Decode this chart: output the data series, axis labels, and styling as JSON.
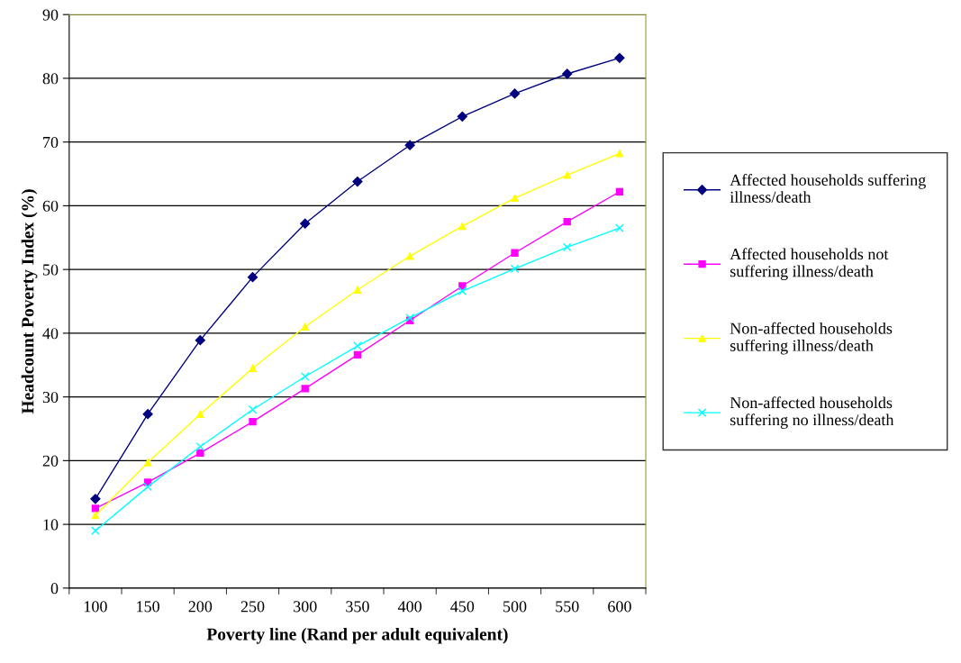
{
  "chart_data": {
    "type": "line",
    "xlabel": "Poverty line (Rand per adult equivalent)",
    "ylabel": "Headcount Poverty Index (%)",
    "categories": [
      "100",
      "150",
      "200",
      "250",
      "300",
      "350",
      "400",
      "450",
      "500",
      "550",
      "600"
    ],
    "ylim": [
      0,
      90
    ],
    "yticks": [
      0,
      10,
      20,
      30,
      40,
      50,
      60,
      70,
      80,
      90
    ],
    "grid": "y",
    "legend": "right",
    "line_style": "solid",
    "series": [
      {
        "name": "Affected households suffering illness/death",
        "color": "#000080",
        "marker": "diamond",
        "values": [
          14,
          27.3,
          38.9,
          48.8,
          57.2,
          63.8,
          69.5,
          74,
          77.6,
          80.7,
          83.2
        ]
      },
      {
        "name": "Affected households not suffering illness/death",
        "color": "#ff00ff",
        "marker": "square",
        "values": [
          12.5,
          16.6,
          21.2,
          26.1,
          31.3,
          36.6,
          42,
          47.4,
          52.6,
          57.5,
          62.2
        ]
      },
      {
        "name": "Non-affected households suffering illness/death",
        "color": "#ffff00",
        "marker": "triangle",
        "values": [
          11.4,
          19.7,
          27.3,
          34.5,
          41,
          46.8,
          52.1,
          56.8,
          61.2,
          64.8,
          68.2
        ]
      },
      {
        "name": "Non-affected households suffering no illness/death",
        "color": "#00ffff",
        "marker": "cross",
        "values": [
          9,
          15.9,
          22.2,
          28,
          33.2,
          38,
          42.4,
          46.6,
          50.1,
          53.5,
          56.5
        ]
      }
    ]
  }
}
